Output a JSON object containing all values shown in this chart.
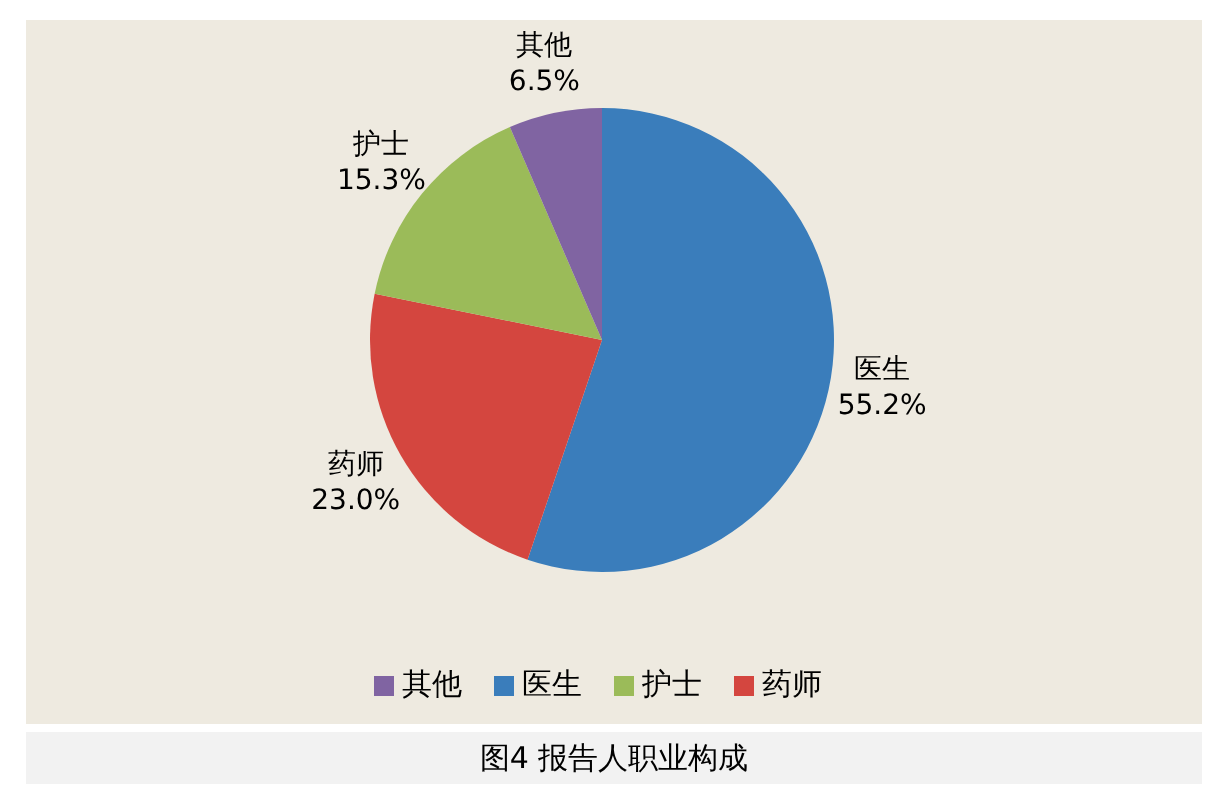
{
  "chart_data": {
    "type": "pie",
    "categories": [
      "医生",
      "药师",
      "护士",
      "其他"
    ],
    "values": [
      55.2,
      23.0,
      15.3,
      6.5
    ],
    "value_labels": [
      "55.2%",
      "23.0%",
      "15.3%",
      "6.5%"
    ],
    "colors": [
      "#3a7dbb",
      "#d4463f",
      "#9bbb59",
      "#8064a2"
    ],
    "legend": "bottom",
    "annotations": [
      "图4 报告人职业构成"
    ]
  }
}
